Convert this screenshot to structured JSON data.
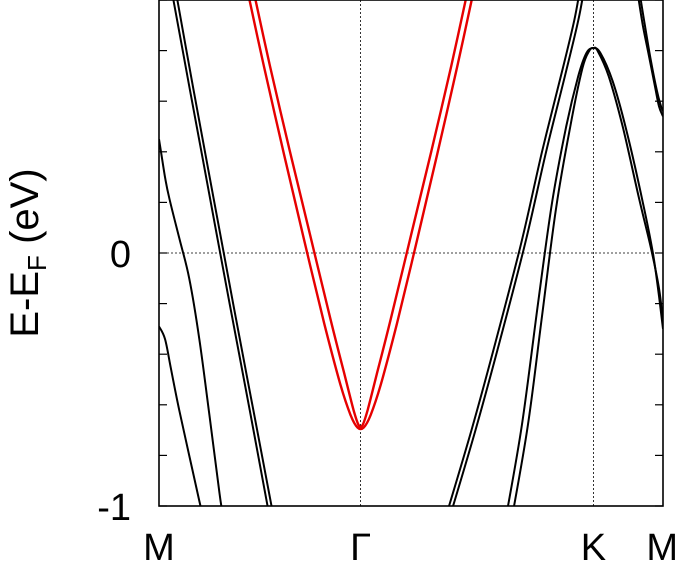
{
  "chart_data": {
    "type": "line",
    "title": "",
    "xlabel": "",
    "ylabel_parts": {
      "main": "E-E",
      "subscript": "F",
      "unit": " (eV)"
    },
    "x_ticks": [
      "M",
      "Γ",
      "K",
      "M"
    ],
    "x_tick_positions": [
      0,
      1,
      2.155,
      2.5
    ],
    "ylim": [
      -1,
      1
    ],
    "y_ticks": [
      {
        "value": -1,
        "label": "-1"
      },
      {
        "value": 0,
        "label": "0"
      }
    ],
    "reference_lines": {
      "fermi_level": 0,
      "vertical_at": [
        1,
        2.155
      ]
    },
    "grid": "dashed reference lines at E=0, Γ and K",
    "series": [
      {
        "color": "#e60000",
        "points": [
          [
            0.46,
            1.07
          ],
          [
            0.55,
            0.74
          ],
          [
            0.65,
            0.4
          ],
          [
            0.75,
            0.07
          ],
          [
            0.85,
            -0.26
          ],
          [
            0.92,
            -0.48
          ],
          [
            0.965,
            -0.62
          ],
          [
            0.99,
            -0.68
          ],
          [
            1.01,
            -0.68
          ],
          [
            1.035,
            -0.62
          ],
          [
            1.08,
            -0.48
          ],
          [
            1.15,
            -0.26
          ],
          [
            1.25,
            0.07
          ],
          [
            1.35,
            0.4
          ],
          [
            1.45,
            0.74
          ],
          [
            1.54,
            1.07
          ]
        ]
      },
      {
        "color": "#e60000",
        "points": [
          [
            0.43,
            1.07
          ],
          [
            0.52,
            0.74
          ],
          [
            0.62,
            0.39
          ],
          [
            0.72,
            0.05
          ],
          [
            0.82,
            -0.28
          ],
          [
            0.9,
            -0.52
          ],
          [
            0.95,
            -0.64
          ],
          [
            0.985,
            -0.69
          ],
          [
            1.015,
            -0.69
          ],
          [
            1.05,
            -0.64
          ],
          [
            1.1,
            -0.52
          ],
          [
            1.18,
            -0.28
          ],
          [
            1.28,
            0.05
          ],
          [
            1.38,
            0.39
          ],
          [
            1.48,
            0.74
          ],
          [
            1.57,
            1.07
          ]
        ]
      },
      {
        "color": "#000000",
        "points": [
          [
            0.06,
            1.05
          ],
          [
            0.15,
            0.66
          ],
          [
            0.25,
            0.23
          ],
          [
            0.35,
            -0.2
          ],
          [
            0.45,
            -0.62
          ],
          [
            0.55,
            -1.05
          ]
        ]
      },
      {
        "color": "#000000",
        "points": [
          [
            0.08,
            1.05
          ],
          [
            0.17,
            0.65
          ],
          [
            0.27,
            0.22
          ],
          [
            0.37,
            -0.21
          ],
          [
            0.47,
            -0.63
          ],
          [
            0.57,
            -1.05
          ]
        ]
      },
      {
        "color": "#000000",
        "points": [
          [
            0.0,
            0.45
          ],
          [
            0.01,
            0.4
          ],
          [
            0.03,
            0.3
          ],
          [
            0.05,
            0.22
          ],
          [
            0.1,
            0.06
          ],
          [
            0.15,
            -0.1
          ],
          [
            0.2,
            -0.34
          ],
          [
            0.25,
            -0.64
          ],
          [
            0.3,
            -0.95
          ],
          [
            0.32,
            -1.05
          ]
        ]
      },
      {
        "color": "#000000",
        "points": [
          [
            0.0,
            -0.29
          ],
          [
            0.03,
            -0.34
          ],
          [
            0.06,
            -0.46
          ],
          [
            0.1,
            -0.62
          ],
          [
            0.15,
            -0.8
          ],
          [
            0.2,
            -0.98
          ],
          [
            0.22,
            -1.05
          ]
        ]
      },
      {
        "color": "#000000",
        "points": [
          [
            1.42,
            -1.05
          ],
          [
            1.55,
            -0.7
          ],
          [
            1.67,
            -0.35
          ],
          [
            1.8,
            0.05
          ],
          [
            1.9,
            0.4
          ],
          [
            2.0,
            0.72
          ],
          [
            2.06,
            0.92
          ],
          [
            2.09,
            1.05
          ]
        ]
      },
      {
        "color": "#000000",
        "points": [
          [
            1.44,
            -1.05
          ],
          [
            1.57,
            -0.7
          ],
          [
            1.69,
            -0.35
          ],
          [
            1.82,
            0.05
          ],
          [
            1.92,
            0.4
          ],
          [
            2.02,
            0.72
          ],
          [
            2.08,
            0.92
          ],
          [
            2.11,
            1.05
          ]
        ]
      },
      {
        "color": "#000000",
        "points": [
          [
            1.72,
            -1.05
          ],
          [
            1.8,
            -0.68
          ],
          [
            1.88,
            -0.2
          ],
          [
            1.95,
            0.2
          ],
          [
            2.02,
            0.5
          ],
          [
            2.08,
            0.7
          ],
          [
            2.12,
            0.79
          ],
          [
            2.155,
            0.81
          ],
          [
            2.19,
            0.79
          ],
          [
            2.25,
            0.68
          ],
          [
            2.32,
            0.48
          ],
          [
            2.4,
            0.2
          ],
          [
            2.45,
            0.0
          ],
          [
            2.48,
            -0.17
          ],
          [
            2.5,
            -0.3
          ]
        ]
      },
      {
        "color": "#000000",
        "points": [
          [
            1.75,
            -1.05
          ],
          [
            1.83,
            -0.68
          ],
          [
            1.9,
            -0.25
          ],
          [
            1.97,
            0.18
          ],
          [
            2.04,
            0.5
          ],
          [
            2.1,
            0.73
          ],
          [
            2.135,
            0.8
          ],
          [
            2.155,
            0.81
          ],
          [
            2.175,
            0.8
          ],
          [
            2.23,
            0.7
          ],
          [
            2.3,
            0.5
          ],
          [
            2.38,
            0.22
          ],
          [
            2.44,
            0.02
          ],
          [
            2.48,
            -0.14
          ],
          [
            2.5,
            -0.27
          ]
        ]
      },
      {
        "color": "#000000",
        "points": [
          [
            2.37,
            1.05
          ],
          [
            2.4,
            0.9
          ],
          [
            2.43,
            0.78
          ],
          [
            2.46,
            0.66
          ],
          [
            2.48,
            0.58
          ],
          [
            2.5,
            0.54
          ]
        ]
      },
      {
        "color": "#000000",
        "points": [
          [
            2.38,
            1.05
          ],
          [
            2.41,
            0.9
          ],
          [
            2.44,
            0.76
          ],
          [
            2.47,
            0.64
          ],
          [
            2.49,
            0.58
          ],
          [
            2.5,
            0.56
          ]
        ]
      }
    ]
  }
}
